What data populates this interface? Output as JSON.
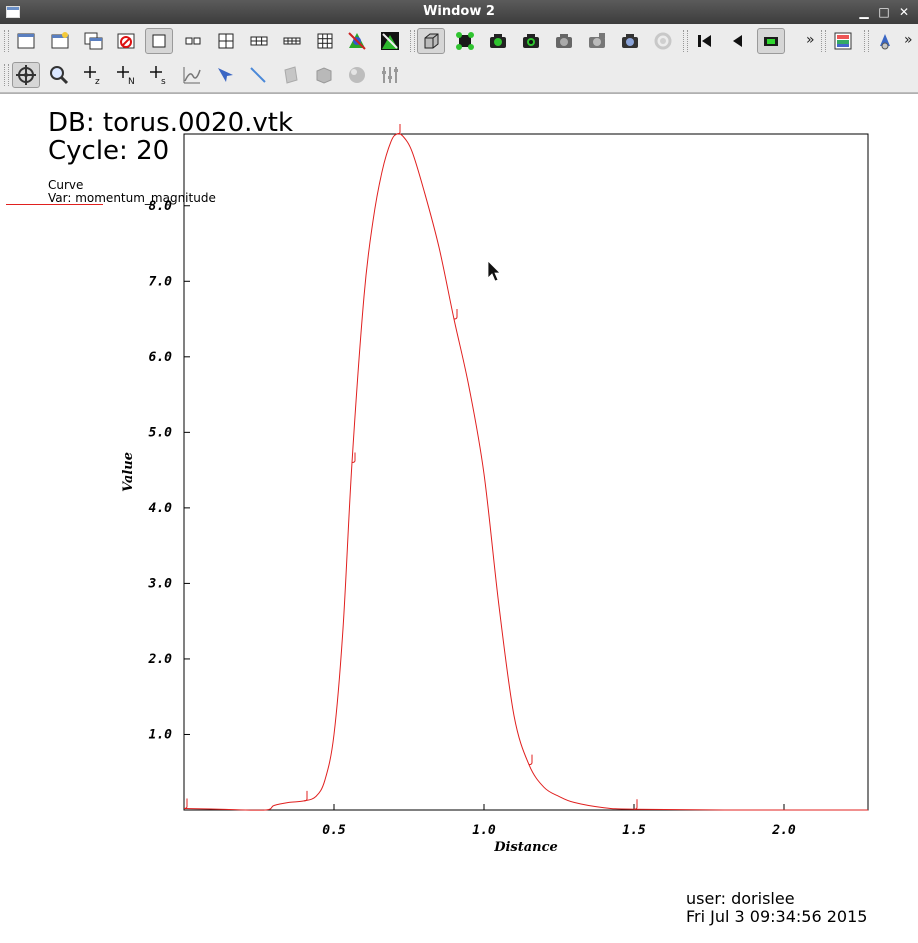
{
  "window": {
    "title": "Window 2"
  },
  "toolbar_top": {
    "icons": [
      "new-window-icon",
      "clone-window-icon",
      "copy-window-icon",
      "delete-window-icon",
      "layout-1x1-icon",
      "layout-1x2-icon",
      "layout-2x2-icon",
      "layout-3x2-icon",
      "layout-4x2-icon",
      "layout-3x3-icon",
      "lock-view-icon",
      "lock-time-icon",
      "box-view-icon",
      "spin-icon",
      "camera-save-icon",
      "camera-icon",
      "camera-2-icon",
      "camera-3-icon",
      "camera-4-icon",
      "camera-5-icon",
      "camera-6-icon",
      "step-back-icon",
      "play-back-icon",
      "stop-icon",
      "image-settings-icon",
      "recenter-icon"
    ],
    "overflow_label": "»"
  },
  "toolbar_bottom": {
    "icons": [
      "navigate-icon",
      "zoom-icon",
      "zone-pick-icon",
      "node-pick-icon",
      "spreadsheet-pick-icon",
      "curve-icon",
      "point-tool-icon",
      "line-tool-icon",
      "plane-tool-icon",
      "box-tool-icon",
      "sphere-tool-icon",
      "axis-restrict-icon"
    ]
  },
  "annotation": {
    "db_line": "DB: torus.0020.vtk",
    "cycle_line": "Cycle: 20",
    "legend_title": "Curve",
    "legend_var": "Var: momentum_magnitude",
    "user_line": "user: dorislee",
    "date_line": "Fri Jul  3 09:34:56 2015"
  },
  "colors": {
    "curve": "#e0201f",
    "frame": "#000000"
  },
  "chart_data": {
    "type": "line",
    "title": "",
    "xlabel": "Distance",
    "ylabel": "Value",
    "xlim": [
      0.0,
      2.28
    ],
    "ylim": [
      0.0,
      8.95
    ],
    "xticks": [
      "0.5",
      "1.0",
      "1.5",
      "2.0"
    ],
    "yticks": [
      "1.0",
      "2.0",
      "3.0",
      "4.0",
      "5.0",
      "6.0",
      "7.0",
      "8.0"
    ],
    "xtick_values": [
      0.5,
      1.0,
      1.5,
      2.0
    ],
    "ytick_values": [
      1.0,
      2.0,
      3.0,
      4.0,
      5.0,
      6.0,
      7.0,
      8.0
    ],
    "series": [
      {
        "name": "momentum_magnitude",
        "x": [
          0.0,
          0.12,
          0.27,
          0.3,
          0.35,
          0.4,
          0.44,
          0.47,
          0.5,
          0.53,
          0.56,
          0.6,
          0.63,
          0.66,
          0.69,
          0.71,
          0.73,
          0.76,
          0.8,
          0.85,
          0.9,
          0.95,
          1.0,
          1.05,
          1.1,
          1.15,
          1.2,
          1.25,
          1.3,
          1.4,
          1.5,
          1.8,
          2.28
        ],
        "y": [
          0.02,
          0.01,
          0.0,
          0.06,
          0.1,
          0.12,
          0.18,
          0.4,
          1.0,
          2.4,
          4.6,
          6.8,
          7.8,
          8.45,
          8.85,
          8.95,
          8.92,
          8.72,
          8.2,
          7.45,
          6.5,
          5.6,
          4.45,
          2.7,
          1.25,
          0.6,
          0.3,
          0.18,
          0.1,
          0.03,
          0.01,
          0.0,
          0.0
        ]
      }
    ]
  }
}
